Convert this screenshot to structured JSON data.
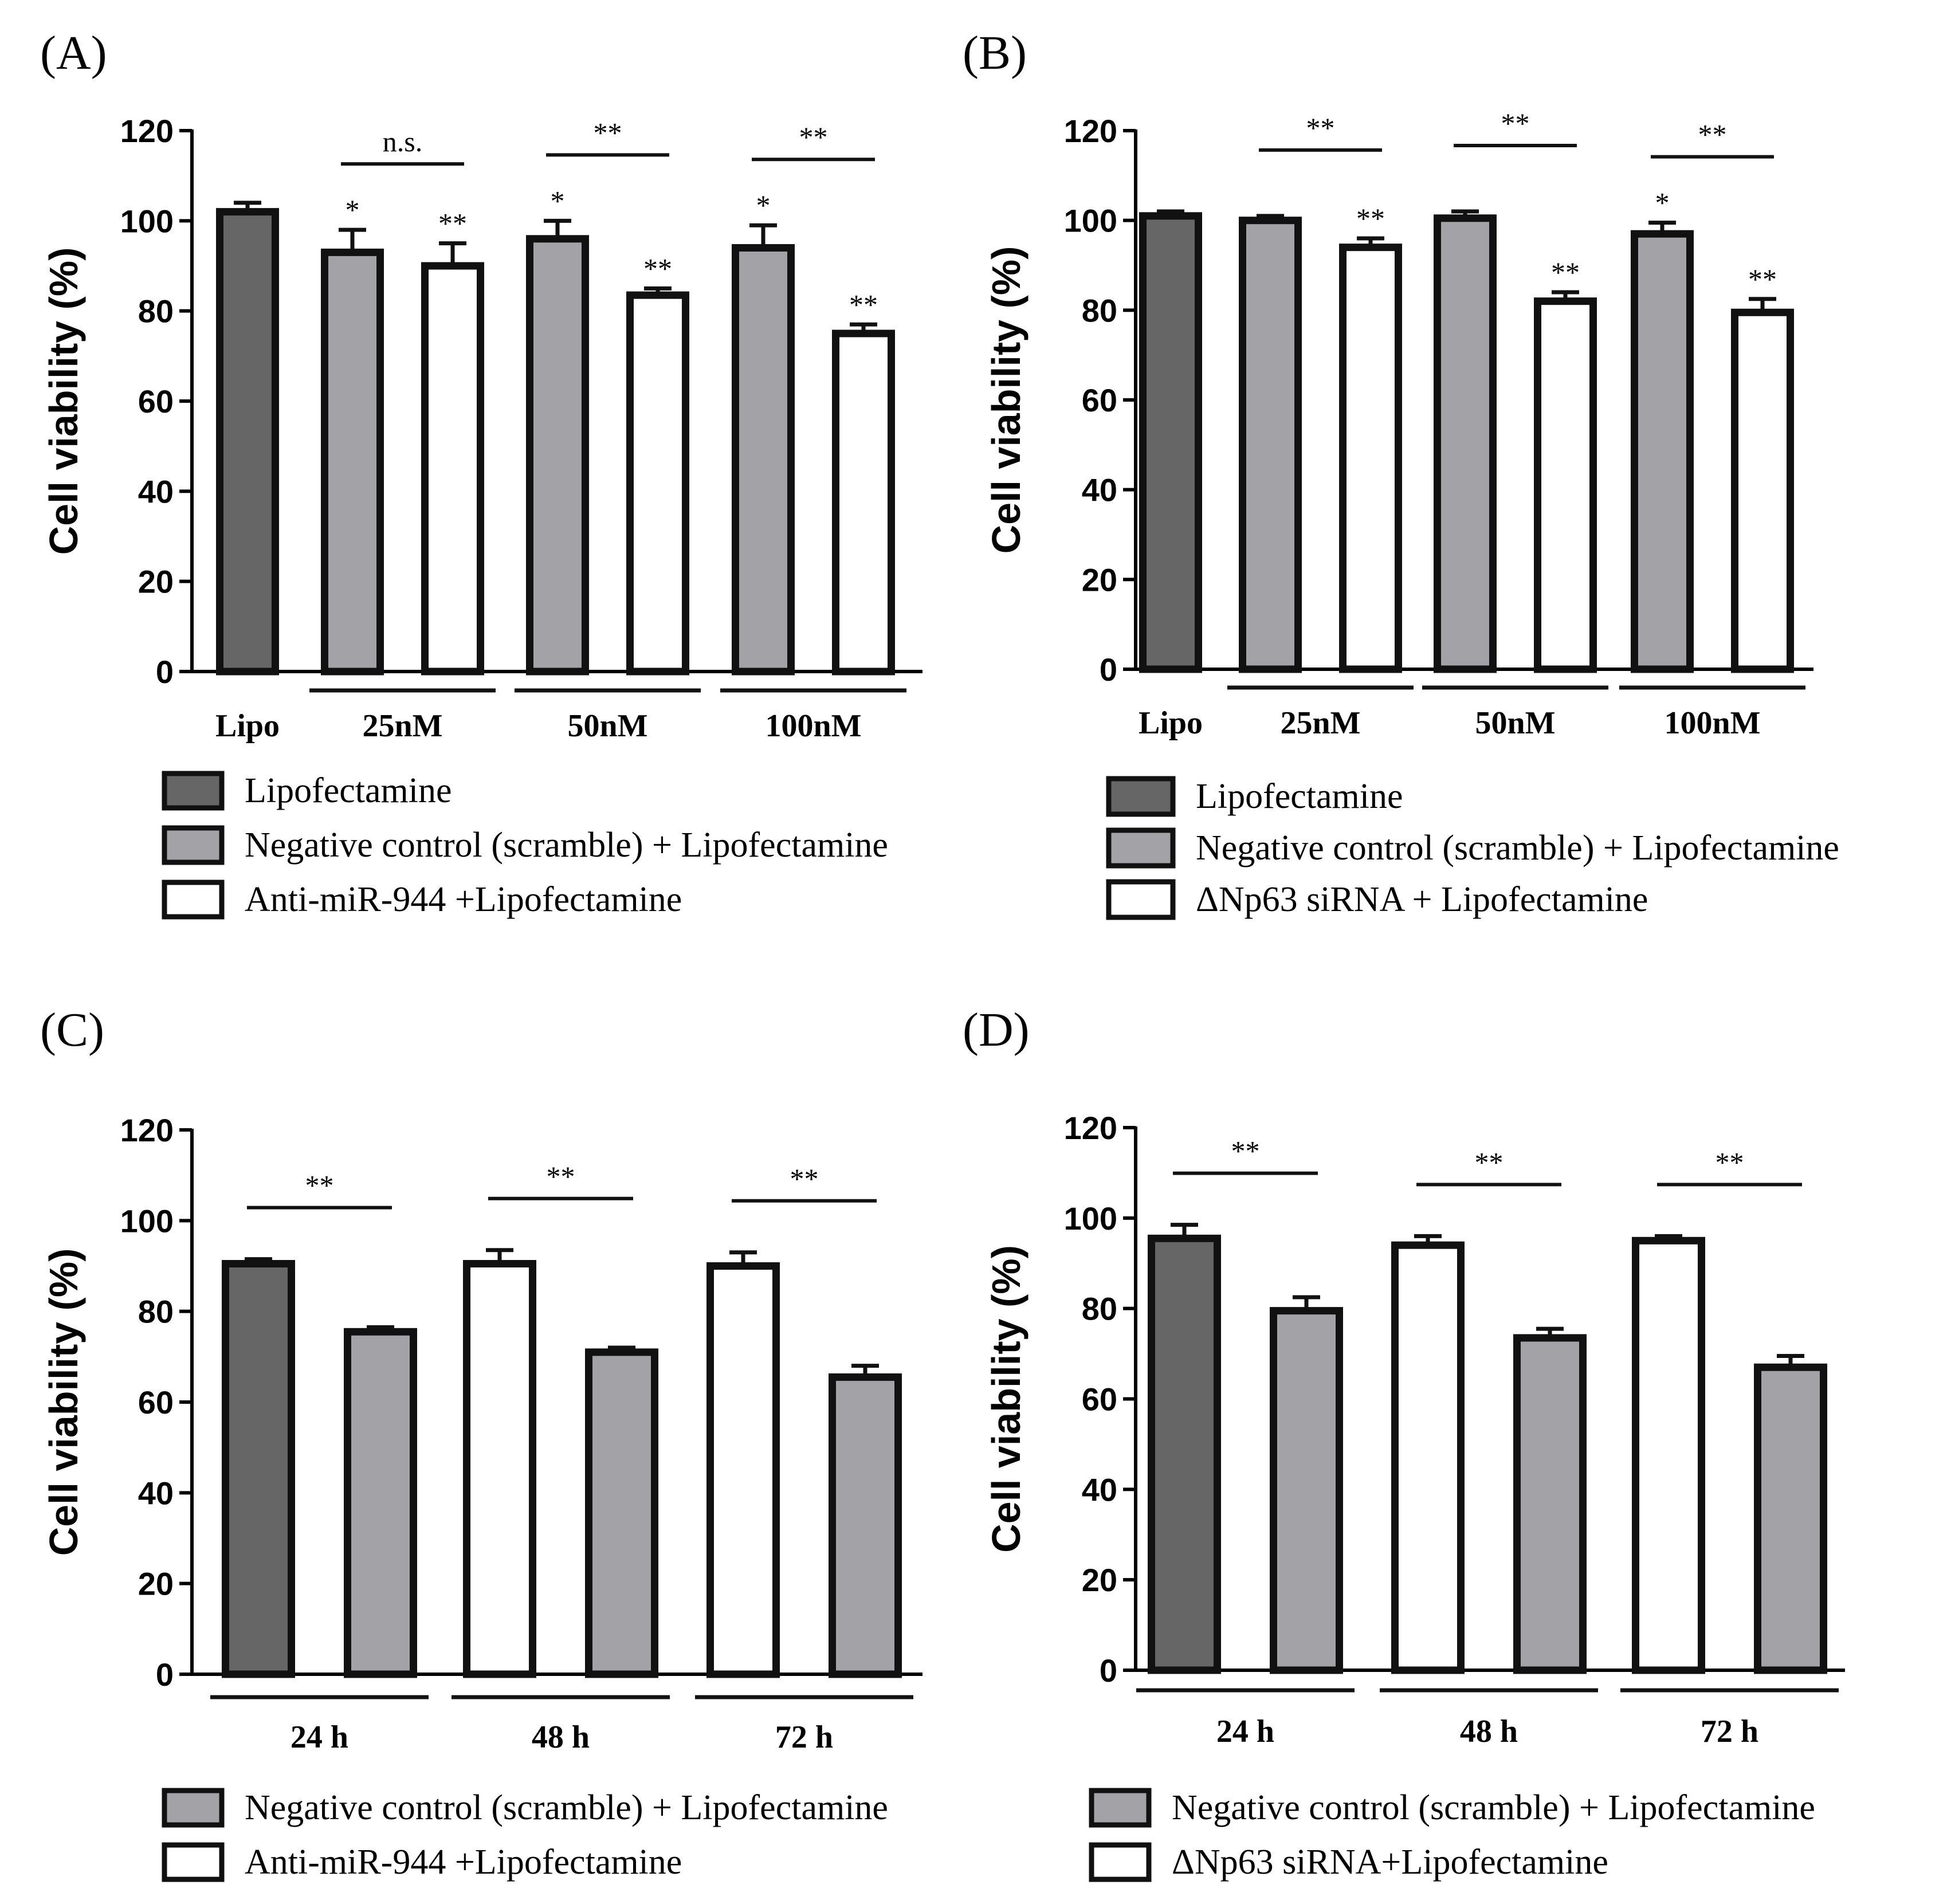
{
  "colors": {
    "lipofectamine": "#666666",
    "negative": "#a3a3a7",
    "treated": "#ffffff",
    "outline": "#111111"
  },
  "chart_data": [
    {
      "id": "A",
      "panel_label": "(A)",
      "type": "bar",
      "ylabel": "Cell viability (%)",
      "ylim": [
        0,
        120
      ],
      "yticks": [
        "0",
        "20",
        "40",
        "60",
        "80",
        "100",
        "120"
      ],
      "groups": [
        {
          "label": "Lipo",
          "underline": false,
          "bars": [
            {
              "value": 102,
              "error": 2,
              "color": "lipofectamine",
              "star": ""
            }
          ]
        },
        {
          "label": "25nM",
          "underline": true,
          "bracket": "n.s.",
          "bars": [
            {
              "value": 93,
              "error": 5,
              "color": "negative",
              "star": "*"
            },
            {
              "value": 90,
              "error": 5,
              "color": "treated",
              "star": "**"
            }
          ]
        },
        {
          "label": "50nM",
          "underline": true,
          "bracket": "**",
          "bars": [
            {
              "value": 96,
              "error": 4,
              "color": "negative",
              "star": "*"
            },
            {
              "value": 83.5,
              "error": 1.5,
              "color": "treated",
              "star": "**"
            }
          ]
        },
        {
          "label": "100nM",
          "underline": true,
          "bracket": "**",
          "bars": [
            {
              "value": 94,
              "error": 5,
              "color": "negative",
              "star": "*"
            },
            {
              "value": 75,
              "error": 2,
              "color": "treated",
              "star": "**"
            }
          ]
        }
      ],
      "legend": [
        {
          "color": "lipofectamine",
          "label": "Lipofectamine"
        },
        {
          "color": "negative",
          "label": "Negative control (scramble) + Lipofectamine"
        },
        {
          "color": "treated",
          "label": "Anti-miR-944 +Lipofectamine"
        }
      ]
    },
    {
      "id": "B",
      "panel_label": "(B)",
      "type": "bar",
      "ylabel": "Cell viability (%)",
      "ylim": [
        0,
        120
      ],
      "yticks": [
        "0",
        "20",
        "40",
        "60",
        "80",
        "100",
        "120"
      ],
      "groups": [
        {
          "label": "Lipo",
          "underline": false,
          "bars": [
            {
              "value": 101,
              "error": 1,
              "color": "lipofectamine",
              "star": ""
            }
          ]
        },
        {
          "label": "25nM",
          "underline": true,
          "bracket": "**",
          "bars": [
            {
              "value": 100,
              "error": 1,
              "color": "negative",
              "star": ""
            },
            {
              "value": 94,
              "error": 2,
              "color": "treated",
              "star": "**"
            }
          ]
        },
        {
          "label": "50nM",
          "underline": true,
          "bracket": "**",
          "bars": [
            {
              "value": 100.5,
              "error": 1.5,
              "color": "negative",
              "star": ""
            },
            {
              "value": 82,
              "error": 2,
              "color": "treated",
              "star": "**"
            }
          ]
        },
        {
          "label": "100nM",
          "underline": true,
          "bracket": "**",
          "bars": [
            {
              "value": 97,
              "error": 2.5,
              "color": "negative",
              "star": "*"
            },
            {
              "value": 79.5,
              "error": 3,
              "color": "treated",
              "star": "**"
            }
          ]
        }
      ],
      "legend": [
        {
          "color": "lipofectamine",
          "label": "Lipofectamine"
        },
        {
          "color": "negative",
          "label": "Negative control (scramble) + Lipofectamine"
        },
        {
          "color": "treated",
          "label": "ΔNp63 siRNA + Lipofectamine"
        }
      ]
    },
    {
      "id": "C",
      "panel_label": "(C)",
      "type": "bar",
      "ylabel": "Cell viability (%)",
      "ylim": [
        0,
        120
      ],
      "yticks": [
        "0",
        "20",
        "40",
        "60",
        "80",
        "100",
        "120"
      ],
      "groups": [
        {
          "label": "24 h",
          "underline": true,
          "bracket": "**",
          "bars": [
            {
              "value": 90.5,
              "error": 1,
              "color": "lipofectamine",
              "star": ""
            },
            {
              "value": 75.5,
              "error": 1,
              "color": "negative",
              "star": ""
            }
          ]
        },
        {
          "label": "48 h",
          "underline": true,
          "bracket": "**",
          "bars": [
            {
              "value": 90.5,
              "error": 3,
              "color": "treated",
              "star": ""
            },
            {
              "value": 71,
              "error": 1,
              "color": "negative",
              "star": ""
            }
          ]
        },
        {
          "label": "72 h",
          "underline": true,
          "bracket": "**",
          "bars": [
            {
              "value": 90,
              "error": 3,
              "color": "treated",
              "star": ""
            },
            {
              "value": 65.5,
              "error": 2.5,
              "color": "negative",
              "star": ""
            }
          ]
        }
      ],
      "legend": [
        {
          "color": "negative",
          "label": "Negative control (scramble) + Lipofectamine"
        },
        {
          "color": "treated",
          "label": "Anti-miR-944 +Lipofectamine"
        }
      ]
    },
    {
      "id": "D",
      "panel_label": "(D)",
      "type": "bar",
      "ylabel": "Cell viability (%)",
      "ylim": [
        0,
        120
      ],
      "yticks": [
        "0",
        "20",
        "40",
        "60",
        "80",
        "100",
        "120"
      ],
      "groups": [
        {
          "label": "24 h",
          "underline": true,
          "bracket": "**",
          "bars": [
            {
              "value": 95.5,
              "error": 3,
              "color": "lipofectamine",
              "star": ""
            },
            {
              "value": 79.5,
              "error": 3,
              "color": "negative",
              "star": ""
            }
          ]
        },
        {
          "label": "48 h",
          "underline": true,
          "bracket": "**",
          "bars": [
            {
              "value": 94,
              "error": 2,
              "color": "treated",
              "star": ""
            },
            {
              "value": 73.5,
              "error": 2,
              "color": "negative",
              "star": ""
            }
          ]
        },
        {
          "label": "72 h",
          "underline": true,
          "bracket": "**",
          "bars": [
            {
              "value": 95,
              "error": 1,
              "color": "treated",
              "star": ""
            },
            {
              "value": 67,
              "error": 2.5,
              "color": "negative",
              "star": ""
            }
          ]
        }
      ],
      "legend": [
        {
          "color": "negative",
          "label": "Negative control (scramble) + Lipofectamine"
        },
        {
          "color": "treated",
          "label": "ΔNp63 siRNA+Lipofectamine"
        }
      ]
    }
  ]
}
